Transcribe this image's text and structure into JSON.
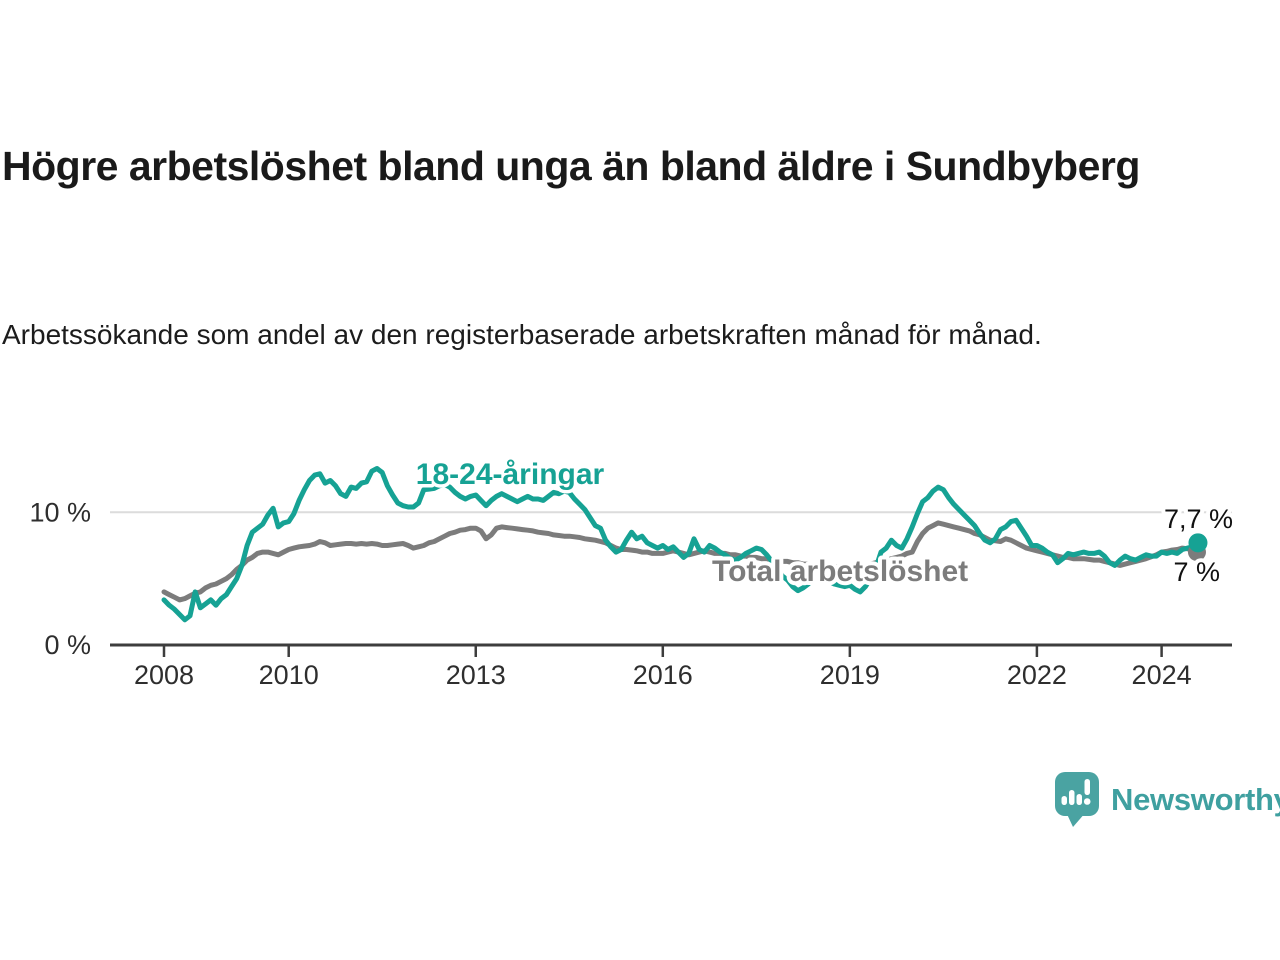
{
  "header": {
    "title": "Högre arbetslöshet bland unga än bland äldre i Sundbyberg",
    "subtitle": "Arbetssökande som andel av den registerbaserade arbetskraften månad för månad."
  },
  "branding": {
    "logo_text": "Newsworthy",
    "logo_color": "#46a1a1",
    "logo_icon": "speech-bubble-bar-chart-exclamation"
  },
  "colors": {
    "youth_line": "#16a294",
    "total_line": "#7c7c7c",
    "axis": "#3d3d3d",
    "gridline": "#dcdcdc",
    "tick_label": "#2e2e2e",
    "end_label": "#111111"
  },
  "chart_data": {
    "type": "line",
    "unit": "%",
    "x_start": "2008-01",
    "x_end": "2024-08",
    "points_per_month": 1,
    "x_ticks": [
      2008,
      2010,
      2013,
      2016,
      2019,
      2022,
      2024
    ],
    "y_ticks": [
      {
        "value": 0,
        "label": "0 %"
      },
      {
        "value": 10,
        "label": "10 %"
      }
    ],
    "ylim": [
      0,
      14.5
    ],
    "grid": "single-horizontal-gridline-at-10",
    "legend_position": "inline-labels-on-lines",
    "series": [
      {
        "id": "total",
        "name": "Total arbetslöshet",
        "color": "#7c7c7c",
        "end_label": "7 %",
        "end_value": 7.0,
        "values": [
          4.0,
          3.8,
          3.6,
          3.4,
          3.5,
          3.7,
          3.9,
          4.0,
          4.3,
          4.5,
          4.6,
          4.8,
          5.0,
          5.3,
          5.7,
          6.0,
          6.4,
          6.6,
          6.9,
          7.0,
          7.0,
          6.9,
          6.8,
          7.0,
          7.2,
          7.3,
          7.4,
          7.45,
          7.5,
          7.6,
          7.8,
          7.7,
          7.5,
          7.55,
          7.6,
          7.65,
          7.65,
          7.6,
          7.65,
          7.6,
          7.65,
          7.6,
          7.5,
          7.5,
          7.55,
          7.6,
          7.65,
          7.5,
          7.3,
          7.4,
          7.5,
          7.7,
          7.8,
          8.0,
          8.2,
          8.4,
          8.5,
          8.65,
          8.7,
          8.8,
          8.8,
          8.6,
          8.0,
          8.3,
          8.8,
          8.9,
          8.85,
          8.8,
          8.75,
          8.7,
          8.65,
          8.6,
          8.5,
          8.45,
          8.4,
          8.3,
          8.25,
          8.2,
          8.2,
          8.15,
          8.1,
          8.0,
          7.95,
          7.9,
          7.8,
          7.7,
          7.5,
          7.3,
          7.2,
          7.2,
          7.15,
          7.1,
          7.0,
          7.0,
          6.9,
          6.9,
          6.9,
          7.0,
          7.1,
          7.0,
          6.9,
          6.8,
          6.9,
          7.0,
          7.1,
          7.0,
          6.9,
          6.9,
          6.9,
          6.8,
          6.8,
          6.7,
          6.7,
          6.6,
          6.6,
          6.5,
          6.5,
          6.4,
          6.4,
          6.3,
          6.3,
          6.2,
          6.2,
          6.1,
          6.1,
          6.0,
          6.0,
          6.0,
          5.9,
          5.9,
          5.9,
          5.9,
          5.9,
          5.9,
          6.0,
          6.0,
          6.1,
          6.2,
          6.3,
          6.4,
          6.5,
          6.6,
          6.7,
          6.9,
          7.0,
          7.8,
          8.4,
          8.8,
          9.0,
          9.2,
          9.1,
          9.0,
          8.9,
          8.8,
          8.7,
          8.6,
          8.4,
          8.3,
          8.1,
          7.9,
          7.85,
          7.8,
          8.0,
          7.9,
          7.7,
          7.5,
          7.3,
          7.2,
          7.1,
          7.0,
          6.9,
          6.8,
          6.7,
          6.6,
          6.6,
          6.5,
          6.5,
          6.5,
          6.45,
          6.4,
          6.4,
          6.3,
          6.2,
          6.1,
          6.0,
          6.1,
          6.2,
          6.3,
          6.4,
          6.5,
          6.65,
          6.8,
          7.0,
          7.05,
          7.15,
          7.2,
          7.3,
          7.25,
          7.15,
          7.0
        ]
      },
      {
        "id": "youth",
        "name": "18-24-åringar",
        "color": "#16a294",
        "end_label": "7,7 %",
        "end_value": 7.7,
        "values": [
          3.4,
          3.0,
          2.7,
          2.3,
          1.9,
          2.2,
          4.0,
          2.8,
          3.1,
          3.4,
          3.0,
          3.5,
          3.8,
          4.4,
          5.0,
          6.0,
          7.5,
          8.5,
          8.8,
          9.1,
          9.8,
          10.3,
          8.9,
          9.2,
          9.3,
          9.9,
          10.9,
          11.7,
          12.4,
          12.8,
          12.9,
          12.2,
          12.4,
          12.0,
          11.4,
          11.2,
          11.9,
          11.8,
          12.2,
          12.3,
          13.1,
          13.3,
          13.0,
          12.0,
          11.3,
          10.7,
          10.5,
          10.4,
          10.4,
          10.7,
          11.7,
          11.75,
          11.8,
          12.0,
          12.1,
          11.9,
          11.5,
          11.2,
          11.0,
          11.2,
          11.3,
          10.9,
          10.5,
          10.9,
          11.2,
          11.4,
          11.2,
          11.0,
          10.8,
          11.0,
          11.2,
          11.0,
          11.0,
          10.9,
          11.2,
          11.5,
          11.4,
          11.6,
          11.5,
          11.0,
          10.6,
          10.2,
          9.6,
          9.0,
          8.8,
          7.9,
          7.4,
          7.0,
          7.2,
          7.9,
          8.5,
          8.0,
          8.2,
          7.7,
          7.5,
          7.3,
          7.5,
          7.2,
          7.4,
          7.0,
          6.6,
          6.9,
          8.0,
          7.2,
          7.0,
          7.5,
          7.3,
          7.0,
          6.8,
          6.5,
          6.4,
          6.6,
          6.9,
          7.1,
          7.3,
          7.2,
          6.8,
          6.3,
          5.8,
          5.2,
          4.9,
          4.4,
          4.1,
          4.3,
          4.6,
          5.0,
          5.2,
          5.0,
          4.8,
          4.6,
          4.5,
          4.4,
          4.5,
          4.2,
          4.0,
          4.4,
          5.0,
          5.8,
          7.0,
          7.3,
          7.9,
          7.5,
          7.3,
          8.0,
          8.9,
          9.9,
          10.8,
          11.1,
          11.6,
          11.9,
          11.7,
          11.1,
          10.6,
          10.2,
          9.8,
          9.4,
          9.0,
          8.4,
          7.9,
          7.7,
          8.0,
          8.7,
          8.9,
          9.3,
          9.4,
          8.8,
          8.2,
          7.5,
          7.5,
          7.3,
          7.0,
          6.8,
          6.2,
          6.5,
          6.9,
          6.8,
          6.9,
          7.0,
          6.9,
          6.9,
          7.0,
          6.7,
          6.2,
          6.0,
          6.4,
          6.7,
          6.5,
          6.4,
          6.6,
          6.8,
          6.7,
          6.7,
          7.0,
          6.9,
          7.0,
          6.9,
          7.2,
          7.3,
          7.4,
          7.7
        ]
      }
    ]
  }
}
